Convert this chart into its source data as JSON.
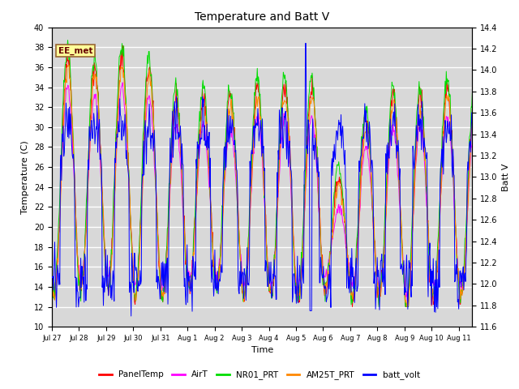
{
  "title": "Temperature and Batt V",
  "xlabel": "Time",
  "ylabel_left": "Temperature (C)",
  "ylabel_right": "Batt V",
  "ylim_left": [
    10,
    40
  ],
  "ylim_right": [
    11.6,
    14.4
  ],
  "annotation": "EE_met",
  "bg_color": "#d8d8d8",
  "fig_color": "#ffffff",
  "series_colors": {
    "PanelTemp": "#ff0000",
    "AirT": "#ff00ff",
    "NR01_PRT": "#00dd00",
    "AM25T_PRT": "#ff8800",
    "batt_volt": "#0000ff"
  },
  "xtick_labels": [
    "Jul 27",
    "Jul 28",
    "Jul 29",
    "Jul 30",
    "Jul 31",
    "Aug 1",
    "Aug 2",
    "Aug 3",
    "Aug 4",
    "Aug 5",
    "Aug 6",
    "Aug 7",
    "Aug 8",
    "Aug 9",
    "Aug 10",
    "Aug 11"
  ],
  "n_days": 15.5,
  "pts_per_day": 48,
  "yticks_left": [
    10,
    12,
    14,
    16,
    18,
    20,
    22,
    24,
    26,
    28,
    30,
    32,
    34,
    36,
    38,
    40
  ],
  "yticks_right": [
    11.6,
    11.8,
    12.0,
    12.2,
    12.4,
    12.6,
    12.8,
    13.0,
    13.2,
    13.4,
    13.6,
    13.8,
    14.0,
    14.2,
    14.4
  ]
}
